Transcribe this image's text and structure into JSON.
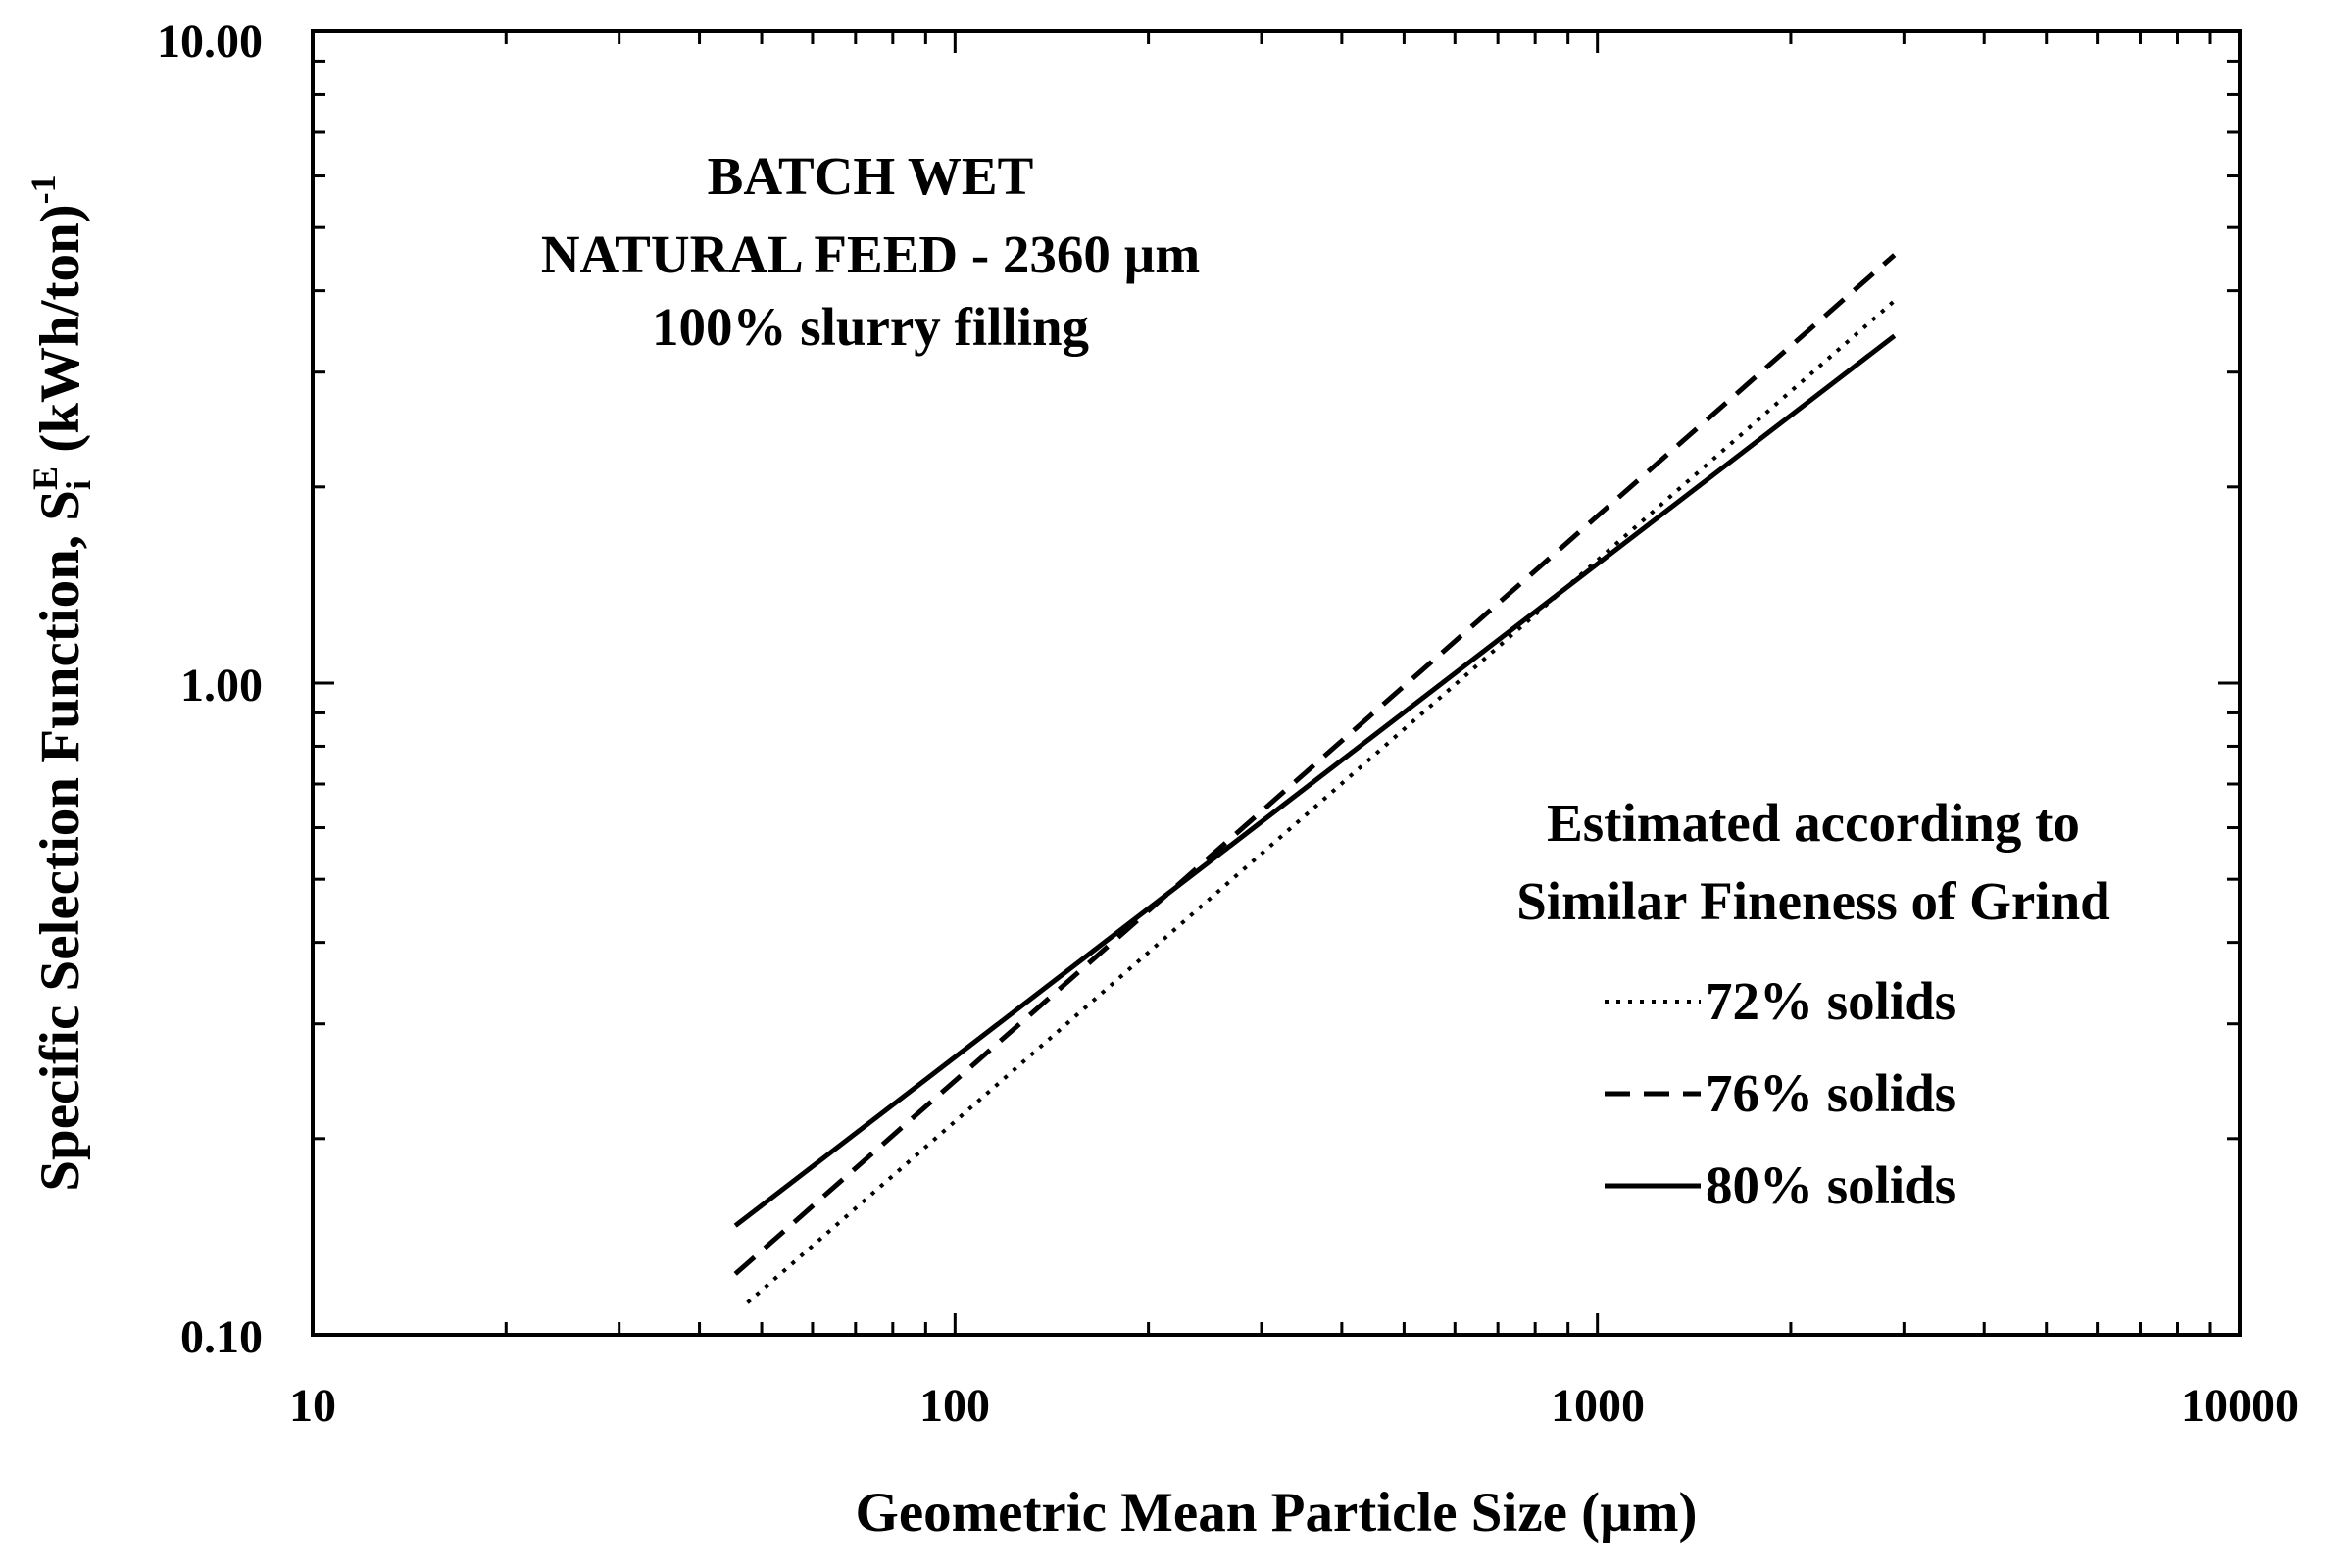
{
  "chart_data": {
    "type": "line",
    "xscale": "log",
    "yscale": "log",
    "xlim": [
      10,
      10000
    ],
    "ylim": [
      0.1,
      10
    ],
    "xlabel": "Geometric Mean Particle Size (µm)",
    "ylabel": {
      "main": "Specific Selection Function, S",
      "sub": "i",
      "sup": "E",
      "unit": " (kWh/ton)",
      "unit_sup": "-1"
    },
    "x_tick_labels": [
      "10",
      "100",
      "1000",
      "10000"
    ],
    "y_tick_labels": [
      "0.10",
      "1.00",
      "10.00"
    ],
    "annotation": [
      "BATCH WET",
      "NATURAL FEED - 2360 µm",
      "100% slurry filling"
    ],
    "legend_title": [
      "Estimated according to",
      "Similar Fineness of Grind"
    ],
    "legend_position": "right",
    "series": [
      {
        "name": "72% solids",
        "style": "dotted",
        "x": [
          47.5,
          2900
        ],
        "y": [
          0.112,
          3.86
        ]
      },
      {
        "name": "76% solids",
        "style": "dashed",
        "x": [
          45.5,
          2900
        ],
        "y": [
          0.124,
          4.54
        ]
      },
      {
        "name": "80% solids",
        "style": "solid",
        "x": [
          45.5,
          2900
        ],
        "y": [
          0.147,
          3.41
        ]
      }
    ],
    "grid": false
  }
}
